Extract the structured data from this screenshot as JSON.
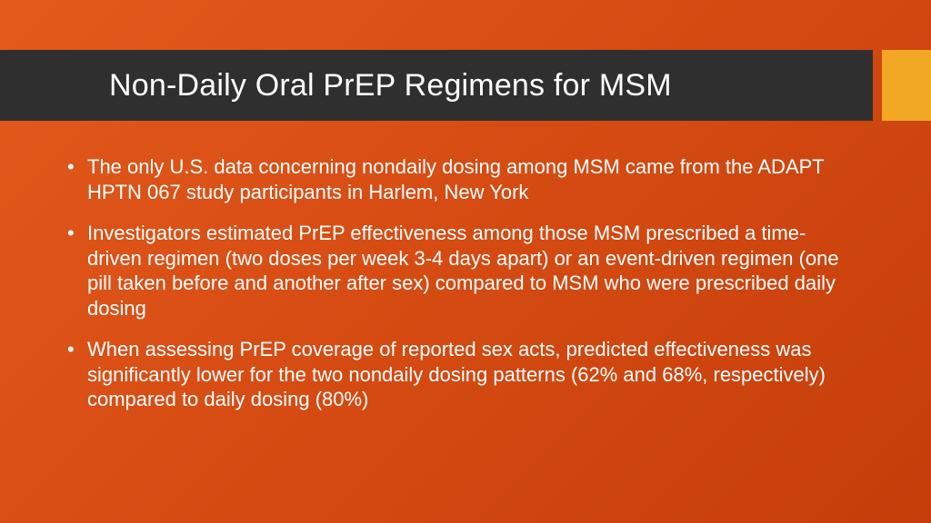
{
  "slide": {
    "title": "Non-Daily Oral PrEP Regimens for MSM",
    "bullets": [
      "The only U.S. data concerning nondaily dosing among MSM came from the ADAPT HPTN 067 study participants in Harlem, New York",
      " Investigators estimated PrEP effectiveness among those MSM prescribed a time-driven regimen (two doses per week 3-4 days apart) or an event-driven regimen (one pill taken before and another after sex) compared to MSM who were prescribed daily dosing",
      "When assessing PrEP coverage of reported sex acts, predicted effectiveness was significantly lower for the two nondaily dosing patterns (62% and 68%, respectively) compared to daily dosing (80%)"
    ]
  },
  "style": {
    "background_gradient": [
      "#e35a1c",
      "#c53d0a"
    ],
    "title_bar_color": "#2f2f2f",
    "accent_color": "#f2a824",
    "text_color": "#ffffff",
    "title_fontsize": 34,
    "body_fontsize": 22
  }
}
